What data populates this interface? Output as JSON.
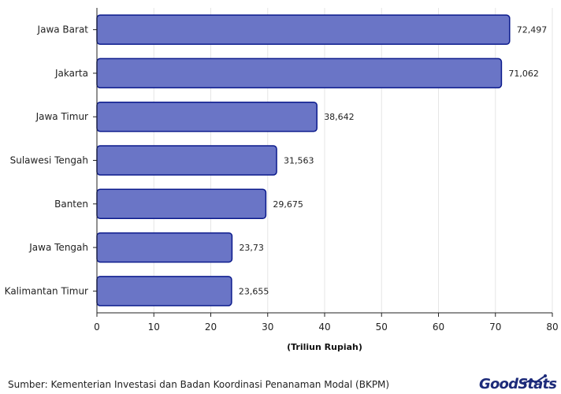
{
  "chart_data": {
    "type": "bar",
    "orientation": "horizontal",
    "categories": [
      "Jawa Barat",
      "Jakarta",
      "Jawa Timur",
      "Sulawesi Tengah",
      "Banten",
      "Jawa Tengah",
      "Kalimantan Timur"
    ],
    "values": [
      72.497,
      71.062,
      38.642,
      31.563,
      29.675,
      23.73,
      23.655
    ],
    "value_labels": [
      "72,497",
      "71,062",
      "38,642",
      "31,563",
      "29,675",
      "23,73",
      "23,655"
    ],
    "xlabel": "(Triliun Rupiah)",
    "xlim": [
      0,
      80
    ],
    "xticks": [
      0,
      10,
      20,
      30,
      40,
      50,
      60,
      70,
      80
    ],
    "grid": "vertical",
    "colors": {
      "bar_fill": "#6a75c6",
      "bar_stroke": "#0b1a8c",
      "grid": "#e6e6e6",
      "axis": "#222222"
    }
  },
  "source": "Sumber: Kementerian Investasi dan Badan Koordinasi Penanaman Modal (BKPM)",
  "logo": {
    "text": "GoodStats",
    "icon": "growth-chart-icon",
    "color": "#1d2b7a"
  }
}
